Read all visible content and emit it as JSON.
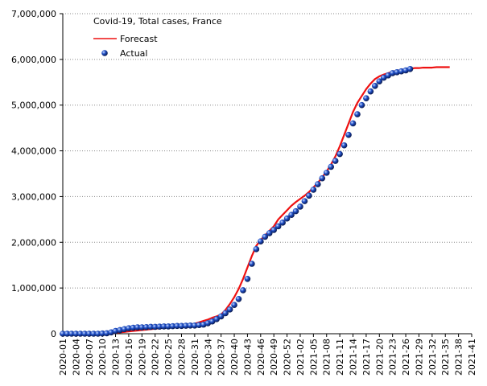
{
  "chart_data": {
    "type": "line",
    "title": "Covid-19, Total cases, France",
    "categories": [
      "2020-01",
      null,
      null,
      "2020-04",
      null,
      null,
      "2020-07",
      null,
      null,
      "2020-10",
      null,
      null,
      "2020-13",
      null,
      null,
      "2020-16",
      null,
      null,
      "2020-19",
      null,
      null,
      "2020-22",
      null,
      null,
      "2020-25",
      null,
      null,
      "2020-28",
      null,
      null,
      "2020-31",
      null,
      null,
      "2020-34",
      null,
      null,
      "2020-37",
      null,
      null,
      "2020-40",
      null,
      null,
      "2020-43",
      null,
      null,
      "2020-46",
      null,
      null,
      "2020-49",
      null,
      null,
      "2020-52",
      null,
      null,
      "2021-02",
      null,
      null,
      "2021-05",
      null,
      null,
      "2021-08",
      null,
      null,
      "2021-11",
      null,
      null,
      "2021-14",
      null,
      null,
      "2021-17",
      null,
      null,
      "2021-20",
      null,
      null,
      "2021-23",
      null,
      null,
      "2021-26",
      null,
      null,
      "2021-29",
      null,
      null,
      "2021-32",
      null,
      null,
      "2021-35",
      null,
      null,
      "2021-38",
      null,
      null,
      "2021-41"
    ],
    "series": [
      {
        "name": "Forecast",
        "color": "#ee1111",
        "style": "line",
        "values": [
          0,
          0,
          0,
          0,
          0,
          0,
          0,
          0,
          0,
          0,
          0,
          10000,
          20000,
          30000,
          40000,
          50000,
          60000,
          70000,
          80000,
          90000,
          100000,
          110000,
          120000,
          130000,
          140000,
          150000,
          160000,
          170000,
          180000,
          200000,
          220000,
          250000,
          280000,
          310000,
          350000,
          380000,
          420000,
          520000,
          650000,
          800000,
          980000,
          1200000,
          1450000,
          1700000,
          1920000,
          2050000,
          2150000,
          2250000,
          2350000,
          2500000,
          2600000,
          2700000,
          2800000,
          2880000,
          2950000,
          3020000,
          3100000,
          3200000,
          3300000,
          3420000,
          3550000,
          3700000,
          3880000,
          4100000,
          4350000,
          4600000,
          4850000,
          5050000,
          5200000,
          5350000,
          5470000,
          5570000,
          5630000,
          5670000,
          5700000,
          5730000,
          5750000,
          5770000,
          5790000,
          5800000,
          5810000,
          5810000,
          5820000,
          5820000,
          5820000,
          5830000,
          5830000,
          5830000,
          5830000,
          null,
          null,
          null,
          null,
          null
        ]
      },
      {
        "name": "Actual",
        "color": "#1f4fc8",
        "style": "markers",
        "values": [
          0,
          0,
          0,
          0,
          0,
          0,
          0,
          0,
          0,
          5000,
          10000,
          30000,
          60000,
          80000,
          100000,
          120000,
          130000,
          140000,
          140000,
          145000,
          150000,
          150000,
          155000,
          160000,
          160000,
          165000,
          170000,
          170000,
          175000,
          180000,
          180000,
          190000,
          200000,
          230000,
          270000,
          320000,
          380000,
          450000,
          530000,
          630000,
          760000,
          950000,
          1200000,
          1530000,
          1850000,
          2020000,
          2120000,
          2200000,
          2270000,
          2350000,
          2430000,
          2520000,
          2600000,
          2680000,
          2780000,
          2900000,
          3020000,
          3150000,
          3270000,
          3400000,
          3520000,
          3650000,
          3780000,
          3930000,
          4120000,
          4350000,
          4600000,
          4800000,
          5000000,
          5150000,
          5300000,
          5420000,
          5520000,
          5600000,
          5650000,
          5700000,
          5720000,
          5740000,
          5760000,
          5790000,
          null,
          null,
          null,
          null,
          null,
          null,
          null,
          null,
          null,
          null,
          null,
          null,
          null,
          null
        ]
      }
    ],
    "ylim": [
      0,
      7000000
    ],
    "yticks": [
      {
        "value": 0,
        "label": "0"
      },
      {
        "value": 1000000,
        "label": "1,000,000"
      },
      {
        "value": 2000000,
        "label": "2,000,000"
      },
      {
        "value": 3000000,
        "label": "3,000,000"
      },
      {
        "value": 4000000,
        "label": "4,000,000"
      },
      {
        "value": 5000000,
        "label": "5,000,000"
      },
      {
        "value": 6000000,
        "label": "6,000,000"
      },
      {
        "value": 7000000,
        "label": "7,000,000"
      }
    ],
    "grid": true
  }
}
